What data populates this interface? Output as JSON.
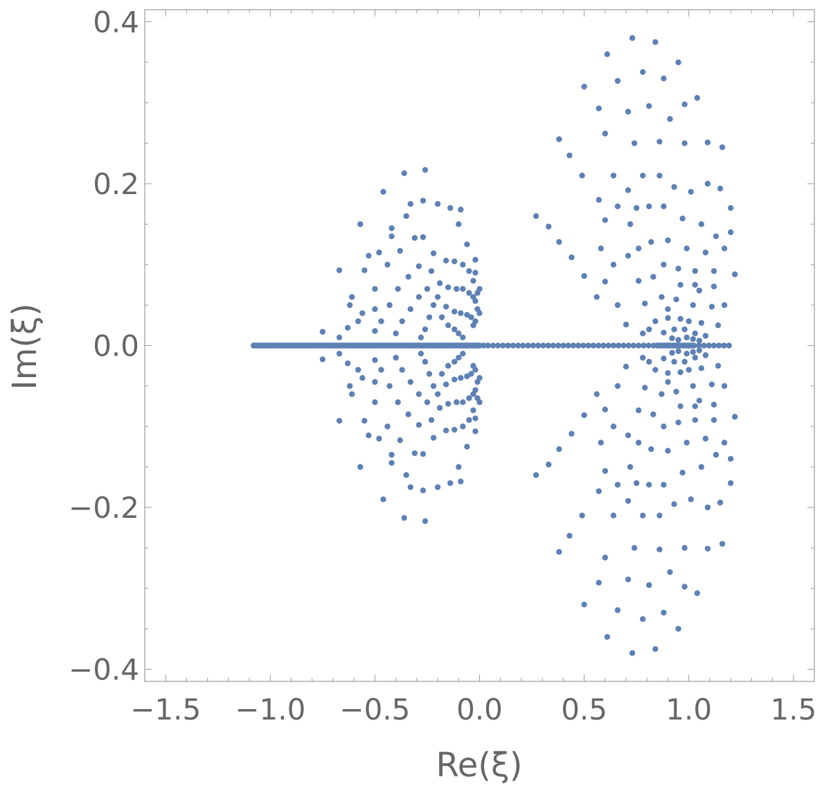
{
  "chart_data": {
    "type": "scatter",
    "xlabel": "Re(ξ)",
    "ylabel": "Im(ξ)",
    "xlim": [
      -1.6,
      1.6
    ],
    "ylim": [
      -0.415,
      0.415
    ],
    "xticks": [
      -1.5,
      -1.0,
      -0.5,
      0.0,
      0.5,
      1.0,
      1.5
    ],
    "xtick_labels": [
      "−1.5",
      "−1.0",
      "−0.5",
      "0.0",
      "0.5",
      "1.0",
      "1.5"
    ],
    "yticks": [
      -0.4,
      -0.2,
      0.0,
      0.2,
      0.4
    ],
    "ytick_labels": [
      "−0.4",
      "−0.2",
      "0.0",
      "0.2",
      "0.4"
    ],
    "grid": false,
    "marker_color": "#5E81B5",
    "axis_color": "#666666",
    "series": [
      {
        "real_axis": {
          "dense": [
            -1.08,
            0.0,
            0.006
          ],
          "sparse": [
            -0.1,
            0.0,
            0.04
          ],
          "right": [
            0.04,
            1.2,
            0.024
          ],
          "cluster": [
            0.85,
            1.02,
            0.008
          ]
        },
        "left_lobe": [
          [
            -0.26,
            0.217
          ],
          [
            -0.36,
            0.213
          ],
          [
            -0.46,
            0.19
          ],
          [
            -0.57,
            0.15
          ],
          [
            -0.27,
            0.179
          ],
          [
            -0.33,
            0.175
          ],
          [
            -0.42,
            0.145
          ],
          [
            -0.53,
            0.111
          ],
          [
            -0.62,
            0.05
          ],
          [
            -0.67,
            0.093
          ],
          [
            -0.2,
            0.175
          ],
          [
            -0.14,
            0.17
          ],
          [
            -0.09,
            0.168
          ],
          [
            -0.1,
            0.15
          ],
          [
            -0.06,
            0.125
          ],
          [
            -0.02,
            0.106
          ],
          [
            -0.35,
            0.16
          ],
          [
            -0.42,
            0.135
          ],
          [
            -0.48,
            0.115
          ],
          [
            -0.55,
            0.093
          ],
          [
            -0.61,
            0.06
          ],
          [
            -0.27,
            0.134
          ],
          [
            -0.31,
            0.133
          ],
          [
            -0.38,
            0.117
          ],
          [
            -0.44,
            0.1
          ],
          [
            -0.5,
            0.07
          ],
          [
            -0.56,
            0.04
          ],
          [
            -0.63,
            0.022
          ],
          [
            -0.22,
            0.114
          ],
          [
            -0.16,
            0.105
          ],
          [
            -0.12,
            0.104
          ],
          [
            -0.08,
            0.1
          ],
          [
            -0.05,
            0.092
          ],
          [
            -0.03,
            0.08
          ],
          [
            -0.02,
            0.09
          ],
          [
            -0.29,
            0.098
          ],
          [
            -0.34,
            0.085
          ],
          [
            -0.39,
            0.07
          ],
          [
            -0.43,
            0.05
          ],
          [
            -0.47,
            0.03
          ],
          [
            -0.5,
            0.018
          ],
          [
            -0.23,
            0.092
          ],
          [
            -0.19,
            0.077
          ],
          [
            -0.15,
            0.072
          ],
          [
            -0.11,
            0.07
          ],
          [
            -0.08,
            0.07
          ],
          [
            -0.05,
            0.065
          ],
          [
            -0.25,
            0.07
          ],
          [
            -0.29,
            0.06
          ],
          [
            -0.33,
            0.045
          ],
          [
            -0.37,
            0.03
          ],
          [
            -0.4,
            0.015
          ],
          [
            -0.2,
            0.06
          ],
          [
            -0.16,
            0.048
          ],
          [
            -0.12,
            0.042
          ],
          [
            -0.09,
            0.04
          ],
          [
            -0.06,
            0.038
          ],
          [
            -0.04,
            0.035
          ],
          [
            -0.22,
            0.05
          ],
          [
            -0.24,
            0.035
          ],
          [
            -0.26,
            0.02
          ],
          [
            -0.28,
            0.01
          ],
          [
            -0.18,
            0.035
          ],
          [
            -0.15,
            0.025
          ],
          [
            -0.12,
            0.02
          ],
          [
            -0.1,
            0.015
          ],
          [
            -0.08,
            0.01
          ],
          [
            -0.03,
            0.06
          ],
          [
            -0.02,
            0.055
          ],
          [
            -0.01,
            0.045
          ],
          [
            0.0,
            0.04
          ],
          [
            -0.02,
            0.03
          ],
          [
            -0.03,
            0.025
          ],
          [
            0.0,
            0.07
          ],
          [
            -0.01,
            0.065
          ],
          [
            -0.75,
            0.017
          ],
          [
            -0.67,
            0.01
          ],
          [
            -0.58,
            0.03
          ],
          [
            -0.5,
            0.045
          ]
        ],
        "right_lobe": [
          [
            0.73,
            0.38
          ],
          [
            0.84,
            0.375
          ],
          [
            0.95,
            0.35
          ],
          [
            0.61,
            0.36
          ],
          [
            0.5,
            0.32
          ],
          [
            0.66,
            0.327
          ],
          [
            0.78,
            0.338
          ],
          [
            0.88,
            0.33
          ],
          [
            0.38,
            0.255
          ],
          [
            0.43,
            0.235
          ],
          [
            0.57,
            0.293
          ],
          [
            0.71,
            0.289
          ],
          [
            0.81,
            0.296
          ],
          [
            0.91,
            0.28
          ],
          [
            0.98,
            0.298
          ],
          [
            1.04,
            0.306
          ],
          [
            0.49,
            0.21
          ],
          [
            0.6,
            0.262
          ],
          [
            0.74,
            0.25
          ],
          [
            0.86,
            0.252
          ],
          [
            0.98,
            0.25
          ],
          [
            1.09,
            0.251
          ],
          [
            1.16,
            0.245
          ],
          [
            0.27,
            0.16
          ],
          [
            0.33,
            0.147
          ],
          [
            0.38,
            0.128
          ],
          [
            0.44,
            0.109
          ],
          [
            0.57,
            0.18
          ],
          [
            0.64,
            0.21
          ],
          [
            0.71,
            0.192
          ],
          [
            0.78,
            0.21
          ],
          [
            0.86,
            0.21
          ],
          [
            0.93,
            0.196
          ],
          [
            1.01,
            0.19
          ],
          [
            1.09,
            0.2
          ],
          [
            1.15,
            0.194
          ],
          [
            0.5,
            0.086
          ],
          [
            0.6,
            0.155
          ],
          [
            0.66,
            0.172
          ],
          [
            0.81,
            0.172
          ],
          [
            0.88,
            0.172
          ],
          [
            0.97,
            0.157
          ],
          [
            1.06,
            0.15
          ],
          [
            1.2,
            0.17
          ],
          [
            0.56,
            0.06
          ],
          [
            0.6,
            0.079
          ],
          [
            0.66,
            0.05
          ],
          [
            0.71,
            0.111
          ],
          [
            0.76,
            0.12
          ],
          [
            0.82,
            0.128
          ],
          [
            0.9,
            0.13
          ],
          [
            0.99,
            0.12
          ],
          [
            1.08,
            0.115
          ],
          [
            1.17,
            0.12
          ],
          [
            0.7,
            0.026
          ],
          [
            0.76,
            0.08
          ],
          [
            0.83,
            0.085
          ],
          [
            0.88,
            0.1
          ],
          [
            0.95,
            0.095
          ],
          [
            1.03,
            0.092
          ],
          [
            1.12,
            0.092
          ],
          [
            1.22,
            0.088
          ],
          [
            0.79,
            0.052
          ],
          [
            0.87,
            0.06
          ],
          [
            0.94,
            0.057
          ],
          [
            1.02,
            0.05
          ],
          [
            1.11,
            0.048
          ],
          [
            1.17,
            0.05
          ],
          [
            0.84,
            0.03
          ],
          [
            0.9,
            0.034
          ],
          [
            0.96,
            0.033
          ],
          [
            1.0,
            0.03
          ],
          [
            1.06,
            0.028
          ],
          [
            1.14,
            0.025
          ],
          [
            0.88,
            0.016
          ],
          [
            0.93,
            0.02
          ],
          [
            0.98,
            0.02
          ],
          [
            1.03,
            0.015
          ],
          [
            1.08,
            0.012
          ],
          [
            0.92,
            0.009
          ],
          [
            0.95,
            0.007
          ],
          [
            0.99,
            0.01
          ],
          [
            1.02,
            0.008
          ],
          [
            1.05,
            0.006
          ],
          [
            0.81,
            0.02
          ],
          [
            0.78,
            0.015
          ],
          [
            0.9,
            0.045
          ],
          [
            1.05,
            0.068
          ],
          [
            1.12,
            0.073
          ],
          [
            0.96,
            0.075
          ],
          [
            1.03,
            0.075
          ],
          [
            0.58,
            0.12
          ],
          [
            0.64,
            0.1
          ],
          [
            0.72,
            0.15
          ],
          [
            0.75,
            0.17
          ],
          [
            1.13,
            0.135
          ],
          [
            1.2,
            0.14
          ]
        ]
      }
    ]
  }
}
